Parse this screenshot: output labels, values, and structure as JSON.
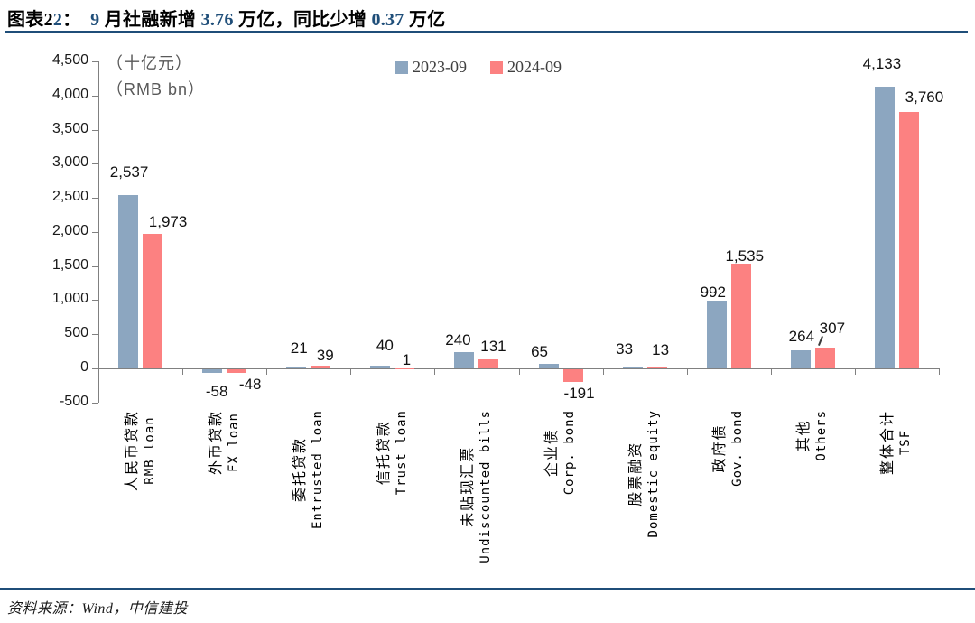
{
  "title": {
    "segments": [
      {
        "text": "图表2",
        "accent": false
      },
      {
        "text": "2",
        "accent": true
      },
      {
        "text": "：  ",
        "accent": false
      },
      {
        "text": "9",
        "accent": true
      },
      {
        "text": " 月社融新增 ",
        "accent": false
      },
      {
        "text": "3.76",
        "accent": true
      },
      {
        "text": " 万亿，同比少增 ",
        "accent": false
      },
      {
        "text": "0.37",
        "accent": true
      },
      {
        "text": " 万亿",
        "accent": false
      }
    ]
  },
  "chart_data": {
    "type": "bar",
    "unit_label_cn": "（十亿元）",
    "unit_label_en": "（RMB bn）",
    "legend_position": "top-center",
    "grid": false,
    "ylim": [
      -500,
      4500
    ],
    "ytick_step": 500,
    "categories": [
      {
        "cn": "人民币贷款",
        "en": "RMB loan"
      },
      {
        "cn": "外币贷款",
        "en": "FX loan"
      },
      {
        "cn": "委托贷款",
        "en": "Entrusted loan"
      },
      {
        "cn": "信托贷款",
        "en": "Trust loan"
      },
      {
        "cn": "未贴现汇票",
        "en": "Undiscounted bills"
      },
      {
        "cn": "企业债",
        "en": "Corp. bond"
      },
      {
        "cn": "股票融资",
        "en": "Domestic equity"
      },
      {
        "cn": "政府债",
        "en": "Gov. bond"
      },
      {
        "cn": "其他",
        "en": "Others"
      },
      {
        "cn": "整体合计",
        "en": "TSF"
      }
    ],
    "series": [
      {
        "name": "2023-09",
        "color": "#8CA6C0",
        "values": [
          2537,
          -58,
          21,
          40,
          240,
          65,
          33,
          992,
          264,
          4133
        ]
      },
      {
        "name": "2024-09",
        "color": "#FC8181",
        "values": [
          1973,
          -48,
          39,
          1,
          131,
          -191,
          13,
          1535,
          307,
          3760
        ]
      }
    ],
    "label_offsets": [
      [
        [
          1,
          -11
        ],
        [
          5,
          7
        ],
        [
          3,
          -6
        ],
        [
          5,
          -8
        ],
        [
          -7,
          1
        ],
        [
          -10,
          1
        ],
        [
          -9,
          -5
        ],
        [
          -4,
          5
        ],
        [
          1,
          -1
        ],
        [
          -3,
          -11
        ]
      ],
      [
        [
          17,
          1
        ],
        [
          15,
          -1
        ],
        [
          5,
          3
        ],
        [
          2,
          5
        ],
        [
          5,
          0
        ],
        [
          7,
          -1
        ],
        [
          4,
          -5
        ],
        [
          4,
          6
        ],
        [
          8,
          -7
        ],
        [
          17,
          -2
        ]
      ]
    ],
    "label_leaders": [
      {
        "series": 1,
        "category": 8
      }
    ]
  },
  "footer": {
    "text": "资料来源：Wind，中信建投"
  },
  "colors": {
    "accent": "#1F4E79",
    "bar_2023": "#8CA6C0",
    "bar_2024": "#FC8181",
    "axis": "#808080"
  }
}
